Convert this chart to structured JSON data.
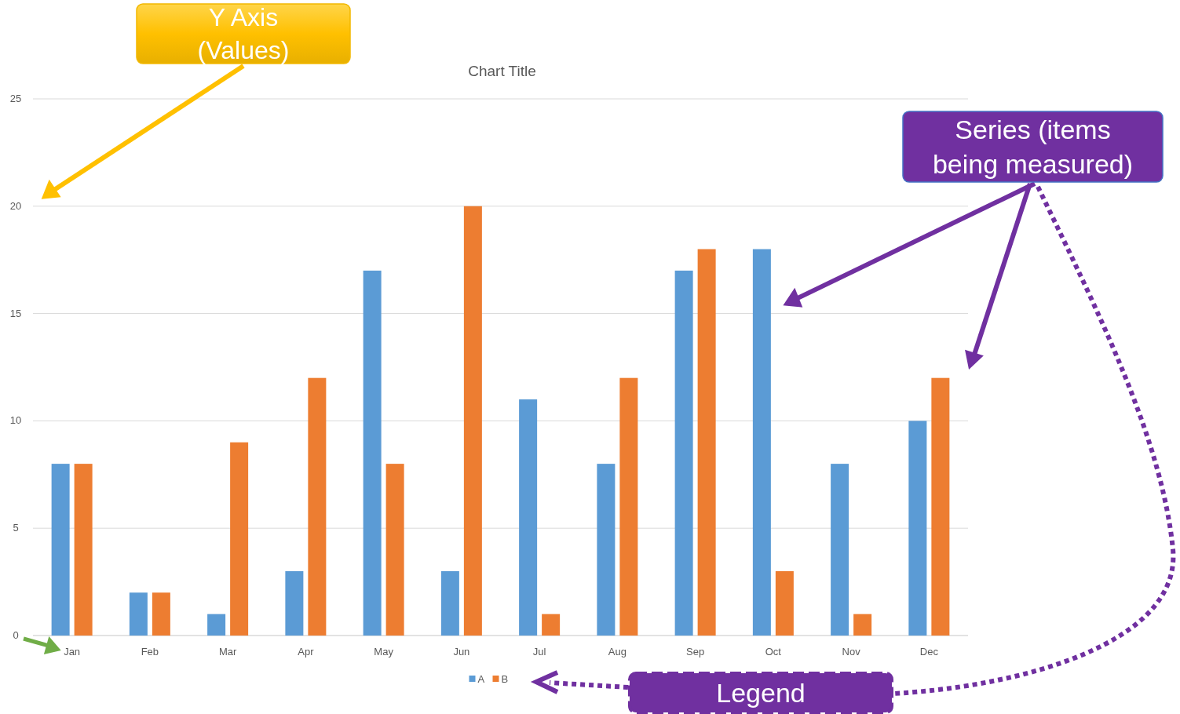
{
  "chart_data": {
    "type": "bar",
    "title": "Chart Title",
    "categories": [
      "Jan",
      "Feb",
      "Mar",
      "Apr",
      "May",
      "Jun",
      "Jul",
      "Aug",
      "Sep",
      "Oct",
      "Nov",
      "Dec"
    ],
    "series": [
      {
        "name": "A",
        "color": "#5b9bd5",
        "values": [
          8,
          2,
          1,
          3,
          17,
          3,
          11,
          8,
          17,
          18,
          8,
          10
        ]
      },
      {
        "name": "B",
        "color": "#ed7d31",
        "values": [
          8,
          2,
          9,
          12,
          8,
          20,
          1,
          12,
          18,
          3,
          1,
          12
        ]
      }
    ],
    "ylim": [
      0,
      25
    ],
    "yticks": [
      0,
      5,
      10,
      15,
      20,
      25
    ],
    "grid": "y",
    "legend": "bottom",
    "annotations": [
      "Y Axis (Values)",
      "Series (items being measured)",
      "Legend"
    ]
  }
}
